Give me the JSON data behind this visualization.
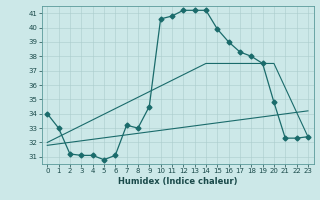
{
  "title": "",
  "xlabel": "Humidex (Indice chaleur)",
  "bg_color": "#cce8e8",
  "grid_color": "#aacccc",
  "line_color": "#1a6b6b",
  "xlim": [
    -0.5,
    23.5
  ],
  "ylim": [
    30.5,
    41.5
  ],
  "xticks": [
    0,
    1,
    2,
    3,
    4,
    5,
    6,
    7,
    8,
    9,
    10,
    11,
    12,
    13,
    14,
    15,
    16,
    17,
    18,
    19,
    20,
    21,
    22,
    23
  ],
  "yticks": [
    31,
    32,
    33,
    34,
    35,
    36,
    37,
    38,
    39,
    40,
    41
  ],
  "curve1_x": [
    0,
    1,
    2,
    3,
    4,
    5,
    6,
    7,
    8,
    9,
    10,
    11,
    12,
    13,
    14,
    15,
    16,
    17,
    18,
    19,
    20,
    21,
    22,
    23
  ],
  "curve1_y": [
    34.0,
    33.0,
    31.2,
    31.1,
    31.1,
    30.8,
    31.1,
    33.2,
    33.0,
    34.5,
    40.6,
    40.8,
    41.2,
    41.2,
    41.2,
    39.9,
    39.0,
    38.3,
    38.0,
    37.5,
    34.8,
    32.3,
    32.3,
    32.4
  ],
  "curve2_x": [
    0,
    23
  ],
  "curve2_y": [
    31.8,
    34.2
  ],
  "curve3_x": [
    0,
    14,
    20,
    23
  ],
  "curve3_y": [
    32.0,
    37.5,
    37.5,
    32.4
  ],
  "marker": "D",
  "markersize": 2.5,
  "lw1": 0.9,
  "lw2": 0.8,
  "lw3": 0.8,
  "xlabel_fontsize": 6,
  "tick_fontsize": 5
}
